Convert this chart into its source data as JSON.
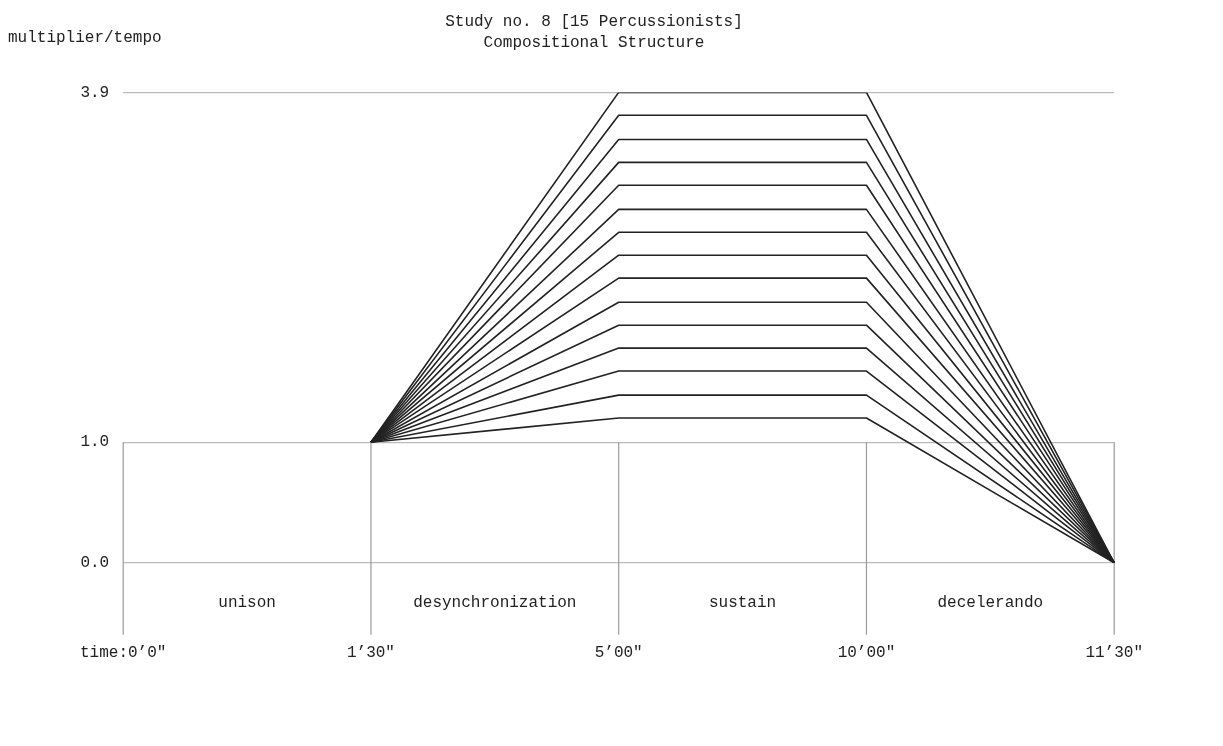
{
  "chart_data": {
    "type": "line",
    "title": "Study no. 8 [15 Percussionists]",
    "subtitle": "Compositional Structure",
    "ylabel": "multiplier/tempo",
    "categories": [
      "time:0’0″",
      "1’30″",
      "5’00″",
      "10’00″",
      "11’30″"
    ],
    "ylim": [
      0,
      3.9
    ],
    "yticks": [
      {
        "value": 0,
        "label": "0.0"
      },
      {
        "value": 1,
        "label": "1.0"
      },
      3.9
    ],
    "grid": "y",
    "ref_lines": [
      {
        "axis": "x",
        "value": "time:0’0″",
        "color": "#999999"
      },
      {
        "axis": "x",
        "value": "1’30″",
        "color": "#999999"
      },
      {
        "axis": "x",
        "value": "5’00″",
        "color": "#999999"
      },
      {
        "axis": "x",
        "value": "10’00″",
        "color": "#999999"
      },
      {
        "axis": "x",
        "value": "11’30″",
        "color": "#999999"
      }
    ],
    "marker": "none",
    "line_style": "solid",
    "annotations": [
      "unison",
      "desynchronization",
      "sustain",
      "decelerando"
    ],
    "series": [
      {
        "color": "#222222",
        "values": [
          null,
          1,
          1.2,
          1.2,
          0
        ]
      },
      {
        "color": "#222222",
        "values": [
          null,
          1,
          1.39,
          1.39,
          0
        ]
      },
      {
        "color": "#222222",
        "values": [
          null,
          1,
          1.59,
          1.59,
          0
        ]
      },
      {
        "color": "#222222",
        "values": [
          null,
          1,
          1.78,
          1.78,
          0
        ]
      },
      {
        "color": "#222222",
        "values": [
          null,
          1,
          1.97,
          1.97,
          0
        ]
      },
      {
        "color": "#222222",
        "values": [
          null,
          1,
          2.16,
          2.16,
          0
        ]
      },
      {
        "color": "#222222",
        "values": [
          null,
          1,
          2.36,
          2.36,
          0
        ]
      },
      {
        "color": "#222222",
        "values": [
          null,
          1,
          2.55,
          2.55,
          0
        ]
      },
      {
        "color": "#222222",
        "values": [
          null,
          1,
          2.74,
          2.74,
          0
        ]
      },
      {
        "color": "#222222",
        "values": [
          null,
          1,
          2.93,
          2.93,
          0
        ]
      },
      {
        "color": "#222222",
        "values": [
          null,
          1,
          3.13,
          3.13,
          0
        ]
      },
      {
        "color": "#222222",
        "values": [
          null,
          1,
          3.32,
          3.32,
          0
        ]
      },
      {
        "color": "#222222",
        "values": [
          null,
          1,
          3.51,
          3.51,
          0
        ]
      },
      {
        "color": "#222222",
        "values": [
          null,
          1,
          3.71,
          3.71,
          0
        ]
      },
      {
        "color": "#222222",
        "values": [
          null,
          1,
          3.9,
          3.9,
          0
        ]
      }
    ]
  }
}
